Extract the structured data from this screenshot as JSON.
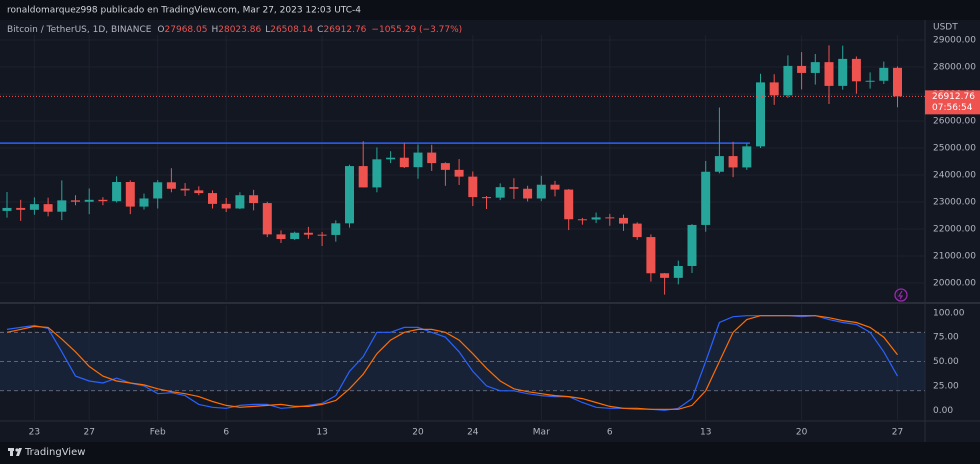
{
  "header": "ronaldomarquez998 publicado en TradingView.com, Mar 27, 2023 12:03 UTC-4",
  "footer": "TradingView",
  "chart_data": [
    {
      "type": "candlestick",
      "title": "Bitcoin / TetherUS, 1D, BINANCE",
      "y_unit": "USDT",
      "ohlc_labels": [
        "O",
        "H",
        "L",
        "C"
      ],
      "change": "−1055.29 (−3.77%)",
      "countdown": "07:56:54",
      "up_color": "#26a69a",
      "down_color": "#ef5350",
      "grid": true,
      "hline": 25180,
      "hline_color": "#2962ff",
      "categories": [
        null,
        null,
        "23",
        null,
        null,
        null,
        "27",
        null,
        null,
        null,
        null,
        "Feb",
        null,
        null,
        null,
        null,
        "6",
        null,
        null,
        null,
        null,
        null,
        null,
        "13",
        null,
        null,
        null,
        null,
        null,
        null,
        "20",
        null,
        null,
        null,
        "24",
        null,
        null,
        null,
        null,
        "Mar",
        null,
        null,
        null,
        null,
        "6",
        null,
        null,
        null,
        null,
        null,
        null,
        "13",
        null,
        null,
        null,
        null,
        null,
        null,
        "20",
        null,
        null,
        null,
        null,
        null,
        null,
        "27"
      ],
      "open": [
        22670,
        22780,
        22710,
        22920,
        22640,
        23060,
        23010,
        23080,
        23030,
        23740,
        22830,
        23130,
        23730,
        23490,
        23430,
        23330,
        22930,
        22760,
        23250,
        22960,
        21800,
        21630,
        21860,
        21790,
        21780,
        22210,
        24330,
        23540,
        24580,
        24640,
        24290,
        24830,
        24440,
        24190,
        23940,
        23180,
        23160,
        23550,
        23490,
        23130,
        23640,
        23460,
        22360,
        22350,
        22430,
        22410,
        22200,
        21700,
        20360,
        20190,
        20630,
        22150,
        24120,
        24700,
        24280,
        25060,
        27430,
        26950,
        28040,
        27780,
        28180,
        27300,
        28300,
        27470,
        27490,
        27968.05
      ],
      "high": [
        23370,
        23080,
        23170,
        23160,
        23800,
        23250,
        23500,
        23180,
        23950,
        23800,
        23310,
        23810,
        24250,
        23700,
        23580,
        23430,
        23150,
        23360,
        23450,
        23010,
        21950,
        21900,
        22080,
        21890,
        22320,
        24380,
        25250,
        25020,
        24880,
        25190,
        25130,
        25120,
        24470,
        24590,
        24130,
        23220,
        23690,
        23880,
        23600,
        23970,
        23780,
        23480,
        22410,
        22610,
        22560,
        22530,
        22250,
        21800,
        20370,
        20830,
        22180,
        24520,
        26500,
        25230,
        25170,
        27750,
        27730,
        28430,
        28550,
        28480,
        28800,
        28790,
        28390,
        27800,
        28200,
        28023.86
      ],
      "low": [
        22420,
        22300,
        22530,
        22470,
        22330,
        22880,
        22550,
        22880,
        22980,
        22550,
        22720,
        22760,
        23360,
        23220,
        23250,
        22760,
        22630,
        22740,
        22690,
        21700,
        21480,
        21590,
        21640,
        21370,
        21530,
        22050,
        23540,
        23360,
        24440,
        24260,
        23860,
        24150,
        23600,
        23630,
        22850,
        22740,
        23070,
        23110,
        23020,
        23030,
        23210,
        21960,
        22160,
        22220,
        22120,
        21930,
        21600,
        20050,
        19570,
        19950,
        20370,
        21900,
        24060,
        23920,
        24190,
        25000,
        26600,
        26860,
        27170,
        27350,
        26630,
        27160,
        27010,
        27200,
        27370,
        26508.14
      ],
      "close": [
        22780,
        22710,
        22920,
        22640,
        23060,
        23010,
        23080,
        23030,
        23740,
        22830,
        23130,
        23730,
        23490,
        23430,
        23330,
        22930,
        22760,
        23250,
        22960,
        21800,
        21630,
        21860,
        21790,
        21780,
        22210,
        24330,
        23540,
        24580,
        24640,
        24290,
        24830,
        24440,
        24190,
        23940,
        23180,
        23160,
        23550,
        23490,
        23130,
        23640,
        23460,
        22360,
        22350,
        22430,
        22410,
        22200,
        21700,
        20360,
        20190,
        20630,
        22150,
        24120,
        24700,
        24280,
        25060,
        27430,
        26950,
        28040,
        27780,
        28180,
        27300,
        28300,
        27470,
        27490,
        27968.05,
        26912.76
      ],
      "ylim": [
        19370,
        29185
      ],
      "yticks": [
        {
          "value": 29000,
          "label": "29000.00"
        },
        {
          "value": 28000,
          "label": "28000.00"
        },
        {
          "value": 27000,
          "label": "27000.00"
        },
        {
          "value": 26000,
          "label": "26000.00"
        },
        {
          "value": 25000,
          "label": "25000.00"
        },
        {
          "value": 24000,
          "label": "24000.00"
        },
        {
          "value": 23000,
          "label": "23000.00"
        },
        {
          "value": 22000,
          "label": "22000.00"
        },
        {
          "value": 21000,
          "label": "21000.00"
        },
        {
          "value": 20000,
          "label": "20000.00"
        }
      ]
    },
    {
      "type": "line",
      "band": [
        20,
        80
      ],
      "dashed_levels": [
        80,
        50,
        20
      ],
      "band_color": "#1c2a44",
      "ylim": [
        -10,
        108
      ],
      "yticks": [
        {
          "value": 100,
          "label": "100.00"
        },
        {
          "value": 75,
          "label": "75.00"
        },
        {
          "value": 50,
          "label": "50.00"
        },
        {
          "value": 25,
          "label": "25.00"
        },
        {
          "value": 0,
          "label": "0.00"
        }
      ],
      "series": [
        {
          "color": "#2962ff",
          "values": [
            83,
            85,
            87,
            84,
            60,
            35,
            30,
            28,
            33,
            28,
            25,
            17,
            18,
            15,
            6,
            3,
            2,
            5,
            6,
            6,
            2,
            3,
            5,
            7,
            15,
            40,
            55,
            80,
            80,
            85,
            85,
            80,
            75,
            60,
            40,
            25,
            20,
            20,
            17,
            15,
            14,
            14,
            8,
            3,
            2,
            2,
            1,
            1,
            0,
            2,
            12,
            50,
            90,
            96,
            97,
            97,
            97,
            97,
            96,
            97,
            93,
            90,
            88,
            80,
            60,
            35
          ]
        },
        {
          "color": "#ff6d00",
          "values": [
            80,
            83,
            86,
            85,
            73,
            60,
            45,
            35,
            30,
            28,
            26,
            22,
            19,
            17,
            14,
            9,
            5,
            3,
            4,
            5,
            6,
            4,
            4,
            6,
            10,
            22,
            37,
            58,
            72,
            80,
            83,
            83,
            80,
            72,
            58,
            43,
            30,
            22,
            19,
            17,
            15,
            14,
            12,
            8,
            4,
            2,
            2,
            1,
            1,
            1,
            5,
            20,
            50,
            80,
            93,
            97,
            97,
            97,
            97,
            97,
            95,
            92,
            90,
            85,
            75,
            57
          ]
        }
      ]
    }
  ]
}
